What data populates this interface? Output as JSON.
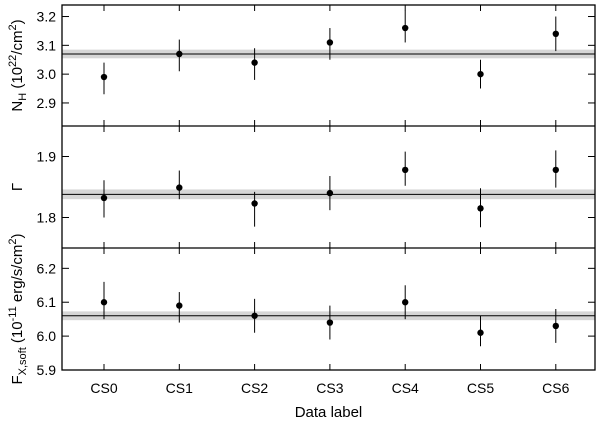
{
  "chart_data": [
    {
      "type": "scatter",
      "panel": "top",
      "ylabel": {
        "main": "N",
        "sub": "H",
        "rest": " (10",
        "sup": "22",
        "tail": "/cm",
        "sup2": "2",
        "end": ")"
      },
      "ylim": [
        2.82,
        3.24
      ],
      "yticks": [
        "2.9",
        "3.0",
        "3.1",
        "3.2"
      ],
      "ytick_values": [
        2.9,
        3.0,
        3.1,
        3.2
      ],
      "categories": [
        "CS0",
        "CS1",
        "CS2",
        "CS3",
        "CS4",
        "CS5",
        "CS6"
      ],
      "values": [
        2.99,
        3.07,
        3.04,
        3.11,
        3.16,
        3.0,
        3.14
      ],
      "err_low": [
        2.93,
        3.01,
        2.98,
        3.05,
        3.11,
        2.95,
        3.08
      ],
      "err_high": [
        3.04,
        3.12,
        3.09,
        3.16,
        3.22,
        3.05,
        3.2
      ],
      "mean": 3.07,
      "band": [
        3.055,
        3.085
      ]
    },
    {
      "type": "scatter",
      "panel": "middle",
      "ylabel": {
        "main": "Γ"
      },
      "ylim": [
        1.75,
        1.95
      ],
      "yticks": [
        "1.8",
        "1.9"
      ],
      "ytick_values": [
        1.8,
        1.9
      ],
      "categories": [
        "CS0",
        "CS1",
        "CS2",
        "CS3",
        "CS4",
        "CS5",
        "CS6"
      ],
      "values": [
        1.832,
        1.849,
        1.823,
        1.84,
        1.878,
        1.815,
        1.878
      ],
      "err_low": [
        1.8,
        1.83,
        1.785,
        1.812,
        1.852,
        1.784,
        1.849
      ],
      "err_high": [
        1.861,
        1.877,
        1.842,
        1.868,
        1.908,
        1.848,
        1.91
      ],
      "mean": 1.838,
      "band": [
        1.83,
        1.846
      ]
    },
    {
      "type": "scatter",
      "panel": "bottom",
      "ylabel": {
        "main": "F",
        "sub": "X,soft",
        "rest": " (10",
        "sup": "-11",
        "tail": " erg/s/cm",
        "sup2": "2",
        "end": ")"
      },
      "ylim": [
        5.9,
        6.26
      ],
      "yticks": [
        "5.9",
        "6.0",
        "6.1",
        "6.2"
      ],
      "ytick_values": [
        5.9,
        6.0,
        6.1,
        6.2
      ],
      "categories": [
        "CS0",
        "CS1",
        "CS2",
        "CS3",
        "CS4",
        "CS5",
        "CS6"
      ],
      "values": [
        6.1,
        6.09,
        6.06,
        6.04,
        6.1,
        6.01,
        6.03
      ],
      "err_low": [
        6.05,
        6.04,
        6.01,
        5.99,
        6.05,
        5.97,
        5.98
      ],
      "err_high": [
        6.16,
        6.13,
        6.11,
        6.09,
        6.15,
        6.06,
        6.08
      ],
      "mean": 6.06,
      "band": [
        6.047,
        6.073
      ]
    }
  ],
  "xlabel": "Data label"
}
